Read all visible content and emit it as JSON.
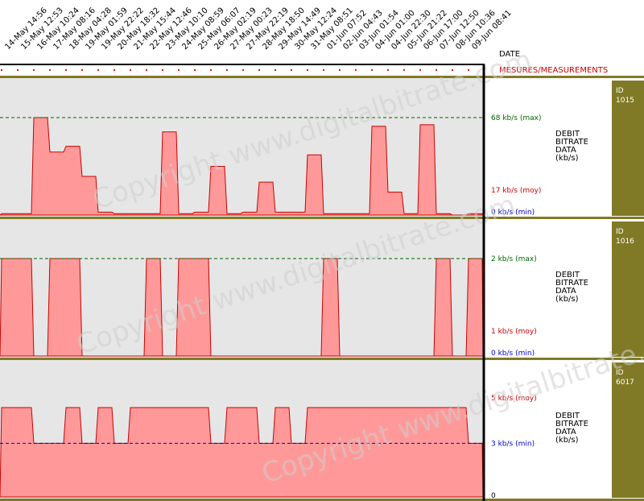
{
  "header": {
    "date_label": "DATE",
    "measurements_label": "MESURES/MEASUREMENTS"
  },
  "watermark": "Copyright www.digitalbitrate.com",
  "colors": {
    "panel_bg": "#e6e6e6",
    "fill": "#ff9999",
    "stroke": "#cc0000",
    "olive": "#807a26",
    "max_line": "#006600",
    "min_line": "#0000cc",
    "avg_text": "#cc0000"
  },
  "chart_data": [
    {
      "type": "area",
      "dates": [
        "14-May 14:56",
        "15-May 12:53",
        "16-May 10:24",
        "17-May 08:16",
        "18-May 04:28",
        "19-May 01:59",
        "19-May 22:22",
        "20-May 18:32",
        "21-May 15:44",
        "22-May 12:46",
        "23-May 10:10",
        "24-May 08:59",
        "25-May 06:07",
        "26-May 02:19",
        "27-May 00:23",
        "27-May 22:19",
        "28-May 18:50",
        "29-May 14:49",
        "30-May 12:24",
        "31-May 08:51",
        "01-Jun 07:52",
        "02-Jun 04:43",
        "03-Jun 01:54",
        "04-Jun 01:00",
        "04-Jun 22:30",
        "05-Jun 21:22",
        "06-Jun 17:00",
        "07-Jun 12:50",
        "08-Jun 10:36",
        "09-Jun 08:41"
      ],
      "id_label": "ID",
      "id": "1015",
      "desc": [
        "DEBIT",
        "BITRATE",
        "DATA",
        "(kb/s)"
      ],
      "max_label": "68 kb/s (max)",
      "avg_label": "17 kb/s (moy)",
      "min_label": "0 kb/s (min)",
      "ylim": [
        0,
        68
      ],
      "max_ref": 68,
      "min_ref": 0,
      "values": [
        1,
        1,
        68,
        44,
        48,
        27,
        2,
        1,
        1,
        1,
        58,
        1,
        2,
        34,
        1,
        2,
        23,
        2,
        2,
        42,
        1,
        1,
        1,
        62,
        16,
        1,
        63,
        1,
        0,
        1
      ]
    },
    {
      "type": "area",
      "id_label": "ID",
      "id": "1016",
      "desc": [
        "DEBIT",
        "BITRATE",
        "DATA",
        "(kb/s)"
      ],
      "max_label": "2 kb/s (max)",
      "avg_label": "1 kb/s (moy)",
      "min_label": "0 kb/s (min)",
      "ylim": [
        0,
        2
      ],
      "max_ref": 2,
      "min_ref": 0,
      "values": [
        2,
        2,
        0,
        2,
        2,
        0,
        0,
        0,
        0,
        2,
        0,
        2,
        2,
        0,
        0,
        0,
        0,
        0,
        0,
        0,
        2,
        0,
        0,
        0,
        0,
        0,
        0,
        2,
        0,
        2
      ]
    },
    {
      "type": "area",
      "id_label": "ID",
      "id": "6017",
      "desc": [
        "DEBIT",
        "BITRATE",
        "DATA",
        "(kb/s)"
      ],
      "avg_label": "5 kb/s (moy)",
      "min_label": "3 kb/s (min)",
      "zero_label": "0",
      "ylim": [
        0,
        5.45
      ],
      "min_ref": 3,
      "values": [
        5,
        5,
        3,
        3,
        5,
        3,
        5,
        3,
        5,
        5,
        5,
        5,
        5,
        3,
        5,
        5,
        3,
        5,
        3,
        5,
        5,
        5,
        5,
        5,
        5,
        5,
        5,
        5,
        5,
        3
      ]
    }
  ]
}
